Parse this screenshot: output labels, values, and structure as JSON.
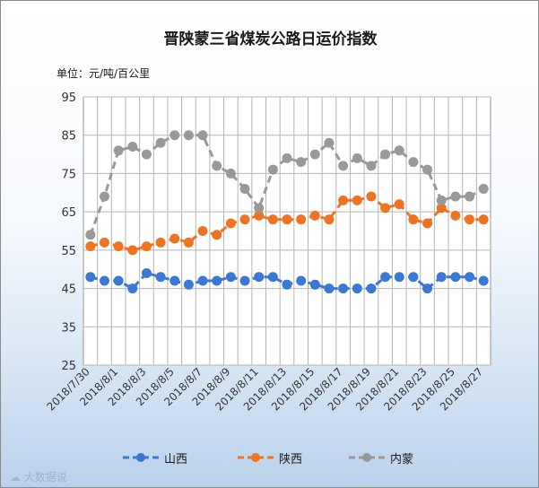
{
  "chart_data": {
    "type": "line",
    "title": "晋陕蒙三省煤炭公路日运价指数",
    "unit_label": "单位：元/吨/百公里",
    "ylim": [
      25,
      95
    ],
    "yticks": [
      25,
      35,
      45,
      55,
      65,
      75,
      85,
      95
    ],
    "x": [
      "2018/7/30",
      "2018/7/31",
      "2018/8/1",
      "2018/8/2",
      "2018/8/3",
      "2018/8/4",
      "2018/8/5",
      "2018/8/6",
      "2018/8/7",
      "2018/8/8",
      "2018/8/9",
      "2018/8/10",
      "2018/8/11",
      "2018/8/12",
      "2018/8/13",
      "2018/8/14",
      "2018/8/15",
      "2018/8/16",
      "2018/8/17",
      "2018/8/18",
      "2018/8/19",
      "2018/8/20",
      "2018/8/21",
      "2018/8/22",
      "2018/8/23",
      "2018/8/24",
      "2018/8/25",
      "2018/8/26",
      "2018/8/27"
    ],
    "xtick_labels": [
      "2018/7/30",
      "2018/8/1",
      "2018/8/3",
      "2018/8/5",
      "2018/8/7",
      "2018/8/9",
      "2018/8/11",
      "2018/8/13",
      "2018/8/15",
      "2018/8/17",
      "2018/8/19",
      "2018/8/21",
      "2018/8/23",
      "2018/8/25",
      "2018/8/27"
    ],
    "grid": true,
    "legend_position": "bottom",
    "series": [
      {
        "name": "山西",
        "color": "#3a78d3",
        "values": [
          48,
          47,
          47,
          45,
          49,
          48,
          47,
          46,
          47,
          47,
          48,
          47,
          48,
          48,
          46,
          47,
          46,
          45,
          45,
          45,
          45,
          48,
          48,
          48,
          45,
          48,
          48,
          48,
          47
        ]
      },
      {
        "name": "陕西",
        "color": "#ee7423",
        "values": [
          56,
          57,
          56,
          55,
          56,
          57,
          58,
          57,
          60,
          59,
          62,
          63,
          64,
          63,
          63,
          63,
          64,
          63,
          68,
          68,
          69,
          66,
          67,
          63,
          62,
          66,
          64,
          63,
          63
        ]
      },
      {
        "name": "内蒙",
        "color": "#999999",
        "values": [
          59,
          69,
          81,
          82,
          80,
          83,
          85,
          85,
          85,
          77,
          75,
          71,
          66,
          76,
          79,
          78,
          80,
          83,
          77,
          79,
          77,
          80,
          81,
          78,
          76,
          68,
          69,
          69,
          71
        ]
      }
    ]
  },
  "watermark": "大数据说"
}
